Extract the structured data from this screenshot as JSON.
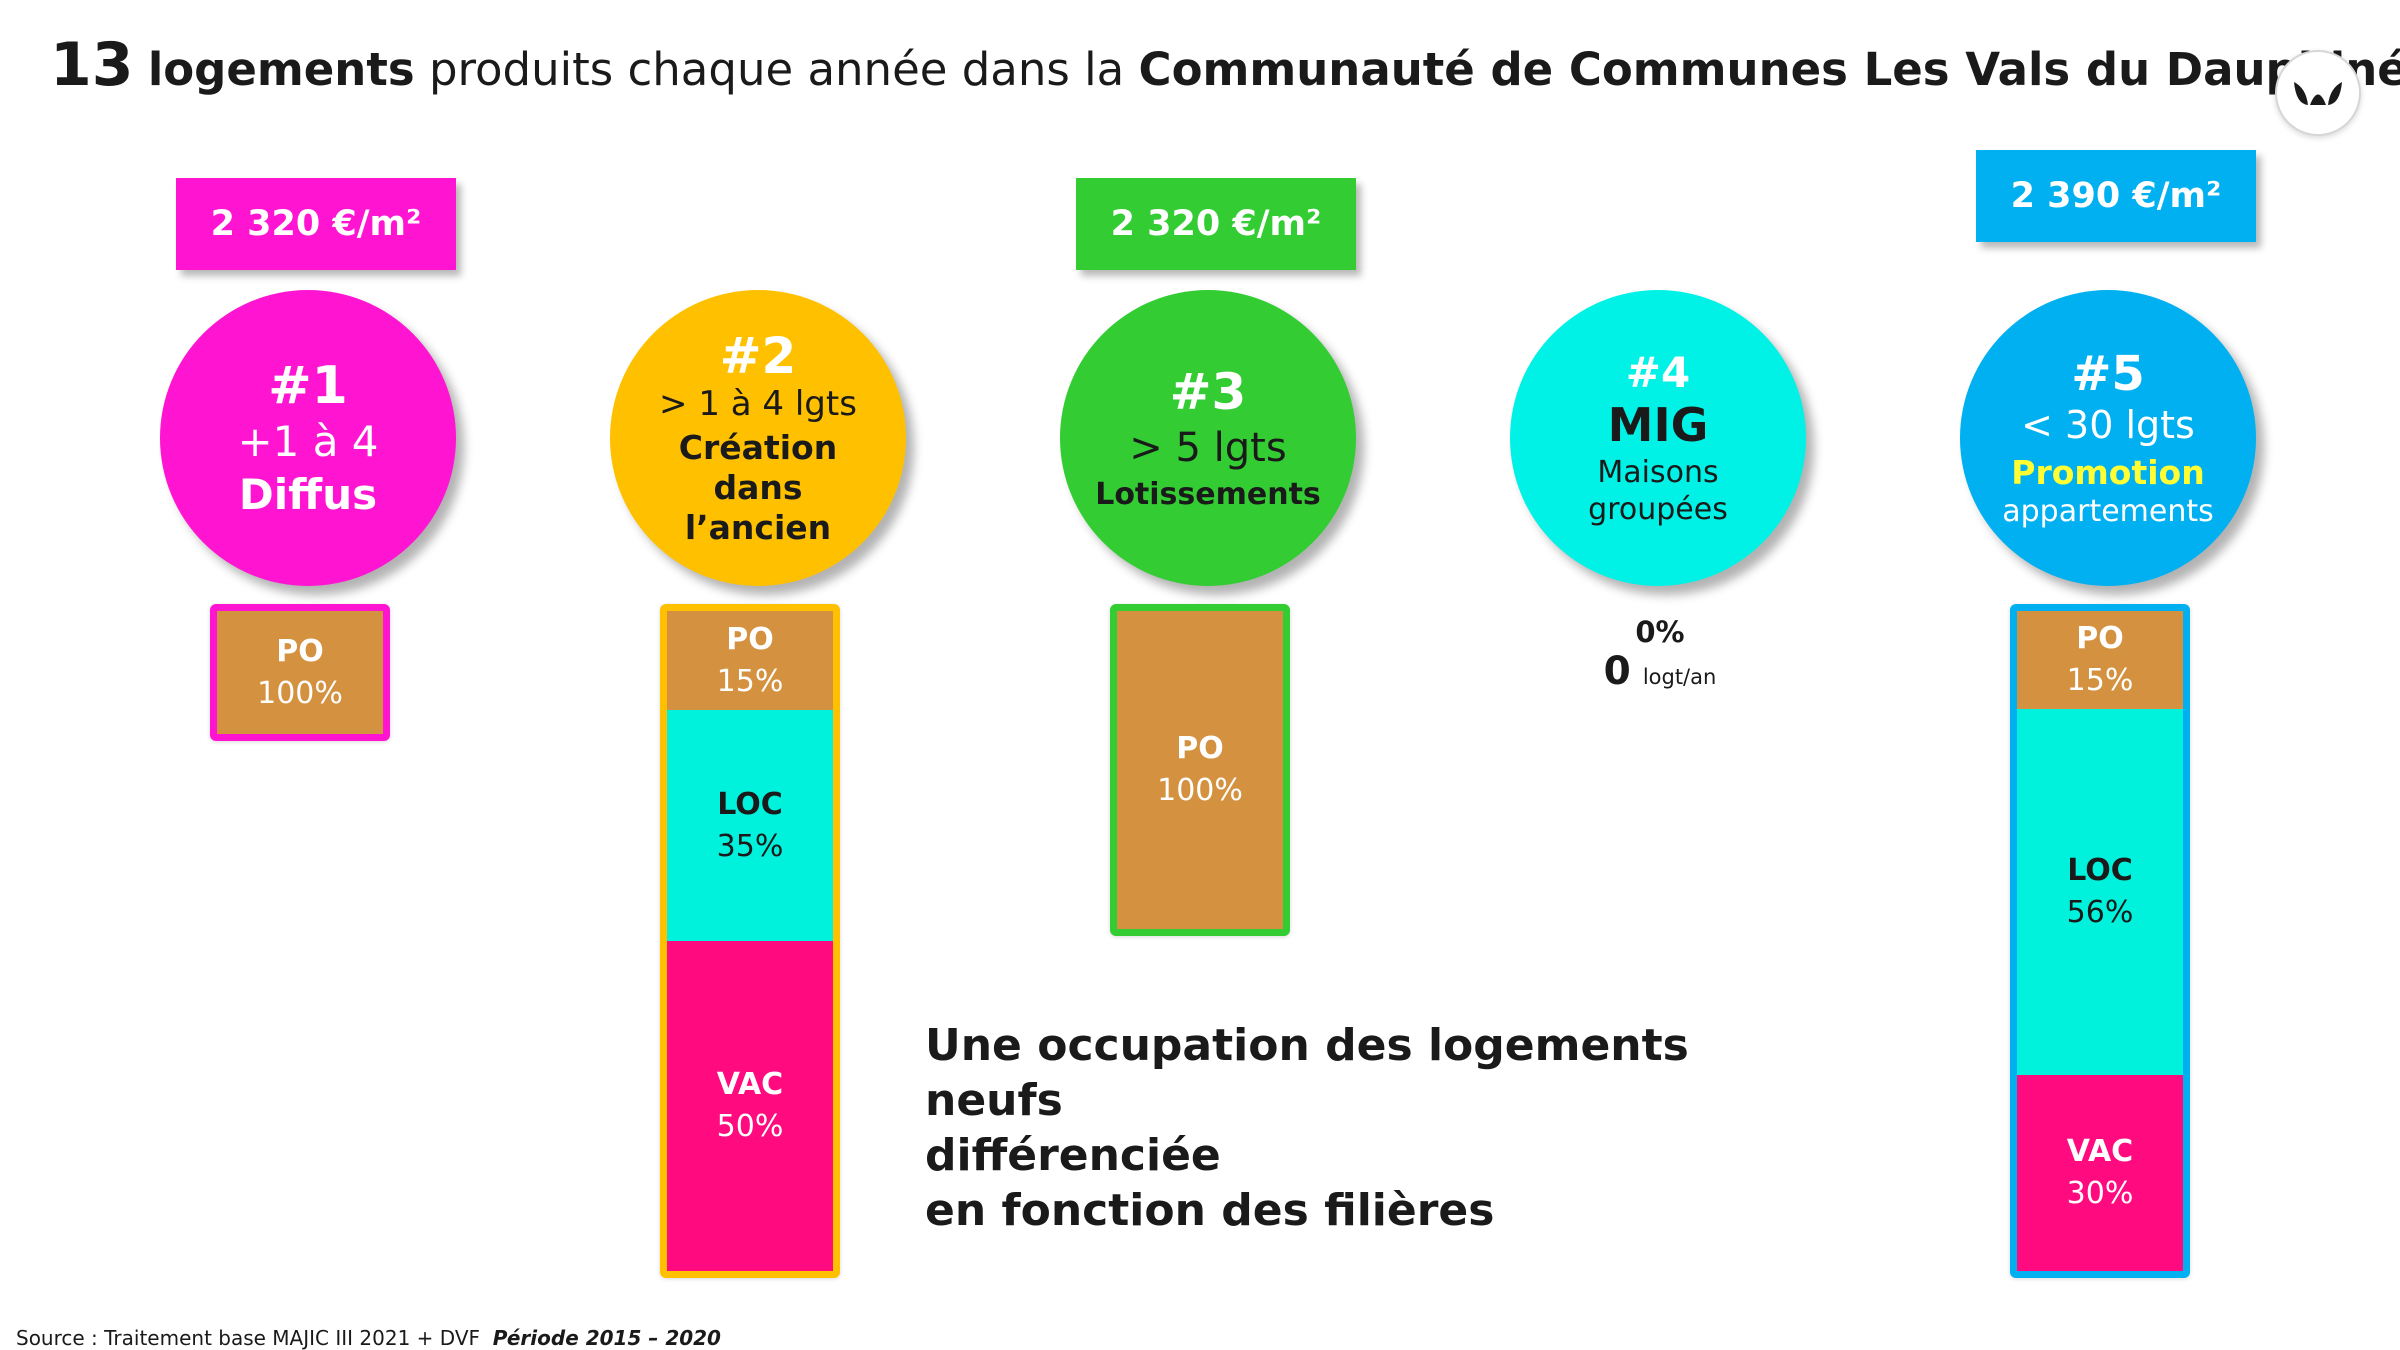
{
  "title": {
    "number": "13",
    "bold1": "logements",
    "normal": "produits chaque année dans la",
    "bold2": "Communauté de Communes Les Vals du Dauphiné"
  },
  "logo": {
    "icon": "leaf-logo-icon"
  },
  "colors": {
    "pink": "#ff14d2",
    "orange": "#ffc000",
    "green": "#33cc33",
    "cyan": "#00f2e6",
    "blue": "#00b0f0",
    "po": "#d4913f",
    "loc": "#00f2dc",
    "vac": "#ff0a7f",
    "yellow": "#ffff33"
  },
  "chart_data": {
    "type": "bar",
    "categories": [
      "#1",
      "#2",
      "#3",
      "#4",
      "#5"
    ],
    "segments": [
      "PO",
      "LOC",
      "VAC"
    ],
    "filieres": [
      {
        "rank": "#1",
        "line1": "+1 à 4",
        "line2": "Diffus",
        "price": "2 320 €/m²",
        "stack": [
          {
            "label": "PO",
            "value": 100,
            "display": "100%"
          }
        ]
      },
      {
        "rank": "#2",
        "line1": "> 1 à 4 lgts",
        "line2": "Création",
        "line3": "dans",
        "line4": "l’ancien",
        "stack": [
          {
            "label": "PO",
            "value": 15,
            "display": "15%"
          },
          {
            "label": "LOC",
            "value": 35,
            "display": "35%"
          },
          {
            "label": "VAC",
            "value": 50,
            "display": "50%"
          }
        ]
      },
      {
        "rank": "#3",
        "line1": "> 5 lgts",
        "line2": "Lotissements",
        "price": "2 320 €/m²",
        "stack": [
          {
            "label": "PO",
            "value": 100,
            "display": "100%"
          }
        ]
      },
      {
        "rank": "#4",
        "line1": "MIG",
        "line2": "Maisons",
        "line3": "groupées",
        "stack": [],
        "zero_pct": "0%",
        "zero_count": "0",
        "zero_unit": "logt/an"
      },
      {
        "rank": "#5",
        "line1": "< 30 lgts",
        "line2": "Promotion",
        "line3": "appartements",
        "price": "2 390 €/m²",
        "stack": [
          {
            "label": "PO",
            "value": 15,
            "display": "15%"
          },
          {
            "label": "LOC",
            "value": 56,
            "display": "56%"
          },
          {
            "label": "VAC",
            "value": 30,
            "display": "30%"
          }
        ]
      }
    ]
  },
  "note": {
    "line1": "Une occupation des logements neufs",
    "line2": "différenciée",
    "line3": "en fonction des filières"
  },
  "source": {
    "text": "Source : Traitement base MAJIC III 2021 + DVF",
    "period": "Période 2015 – 2020"
  }
}
